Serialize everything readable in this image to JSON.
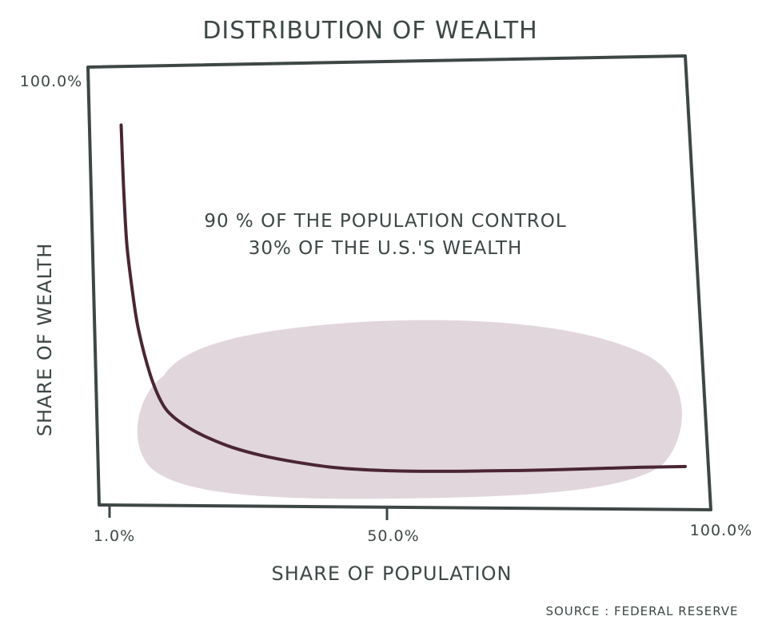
{
  "chart_data": {
    "type": "line",
    "title": "DISTRIBUTION OF WEALTH",
    "xlabel": "SHARE OF POPULATION",
    "ylabel": "SHARE OF WEALTH",
    "x_tick_labels": [
      "1.0%",
      "50.0%",
      "100.0%"
    ],
    "y_tick_labels": [
      "100.0%"
    ],
    "xlim": [
      1,
      100
    ],
    "ylim": [
      0,
      100
    ],
    "grid": false,
    "annotation": {
      "lines": [
        "90 % OF THE POPULATION CONTROL",
        "30% OF THE U.S.'S WEALTH"
      ]
    },
    "highlight_color": "#e2d6dd",
    "line_color": "#4a2634",
    "series": [
      {
        "x": [
          3,
          3.2,
          3.5,
          4,
          5,
          6,
          8,
          10,
          12,
          15,
          18,
          22,
          27,
          33,
          40,
          48,
          56,
          65,
          75,
          85,
          92,
          100
        ],
        "y": [
          88,
          80,
          70,
          58,
          46,
          37,
          26,
          19,
          15.5,
          12.5,
          10.3,
          8,
          6,
          4.3,
          2.9,
          2.2,
          2,
          2.1,
          2.3,
          2.7,
          3,
          3.2
        ]
      }
    ],
    "source": "SOURCE : FEDERAL RESERVE"
  }
}
